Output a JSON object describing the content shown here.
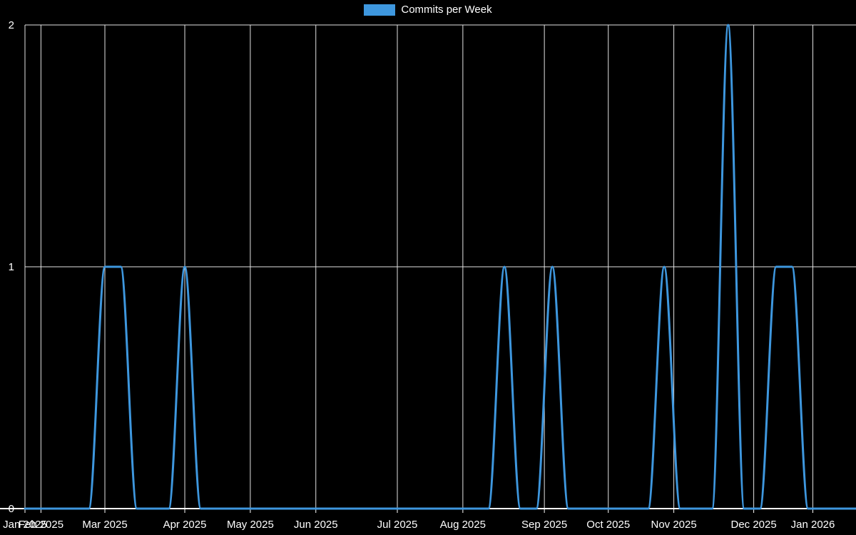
{
  "chart_data": {
    "type": "line",
    "legend": "Commits per Week",
    "title": "",
    "xlabel": "",
    "ylabel": "",
    "ylim": [
      0,
      2
    ],
    "y_ticks": [
      0,
      1,
      2
    ],
    "x_unit": "weeks from axis start",
    "x_ticks": [
      {
        "label": "Jan 2025",
        "week": 0
      },
      {
        "label": "Feb 2025",
        "week": 1
      },
      {
        "label": "Mar 2025",
        "week": 5
      },
      {
        "label": "Apr 2025",
        "week": 10
      },
      {
        "label": "May 2025",
        "week": 14.1
      },
      {
        "label": "Jun 2025",
        "week": 18.2
      },
      {
        "label": "Jul 2025",
        "week": 23.3
      },
      {
        "label": "Aug 2025",
        "week": 27.4
      },
      {
        "label": "Sep 2025",
        "week": 32.5
      },
      {
        "label": "Oct 2025",
        "week": 36.5
      },
      {
        "label": "Nov 2025",
        "week": 40.6
      },
      {
        "label": "Dec 2025",
        "week": 45.6
      },
      {
        "label": "Jan 2026",
        "week": 49.3
      }
    ],
    "values": [
      0,
      0,
      0,
      0,
      0,
      1,
      1,
      0,
      0,
      0,
      1,
      0,
      0,
      0,
      0,
      0,
      0,
      0,
      0,
      0,
      0,
      0,
      0,
      0,
      0,
      0,
      0,
      0,
      0,
      0,
      1,
      0,
      0,
      1,
      0,
      0,
      0,
      0,
      0,
      0,
      1,
      0,
      0,
      0,
      2,
      0,
      0,
      1,
      1,
      0,
      0,
      0,
      0
    ],
    "grid_on": true,
    "legend_position": "top-center",
    "line_color": "#3e97de",
    "grid_color": "#e2e2e2",
    "axis_color": "#ffffff",
    "text_color": "#ffffff",
    "background": "#000000"
  }
}
